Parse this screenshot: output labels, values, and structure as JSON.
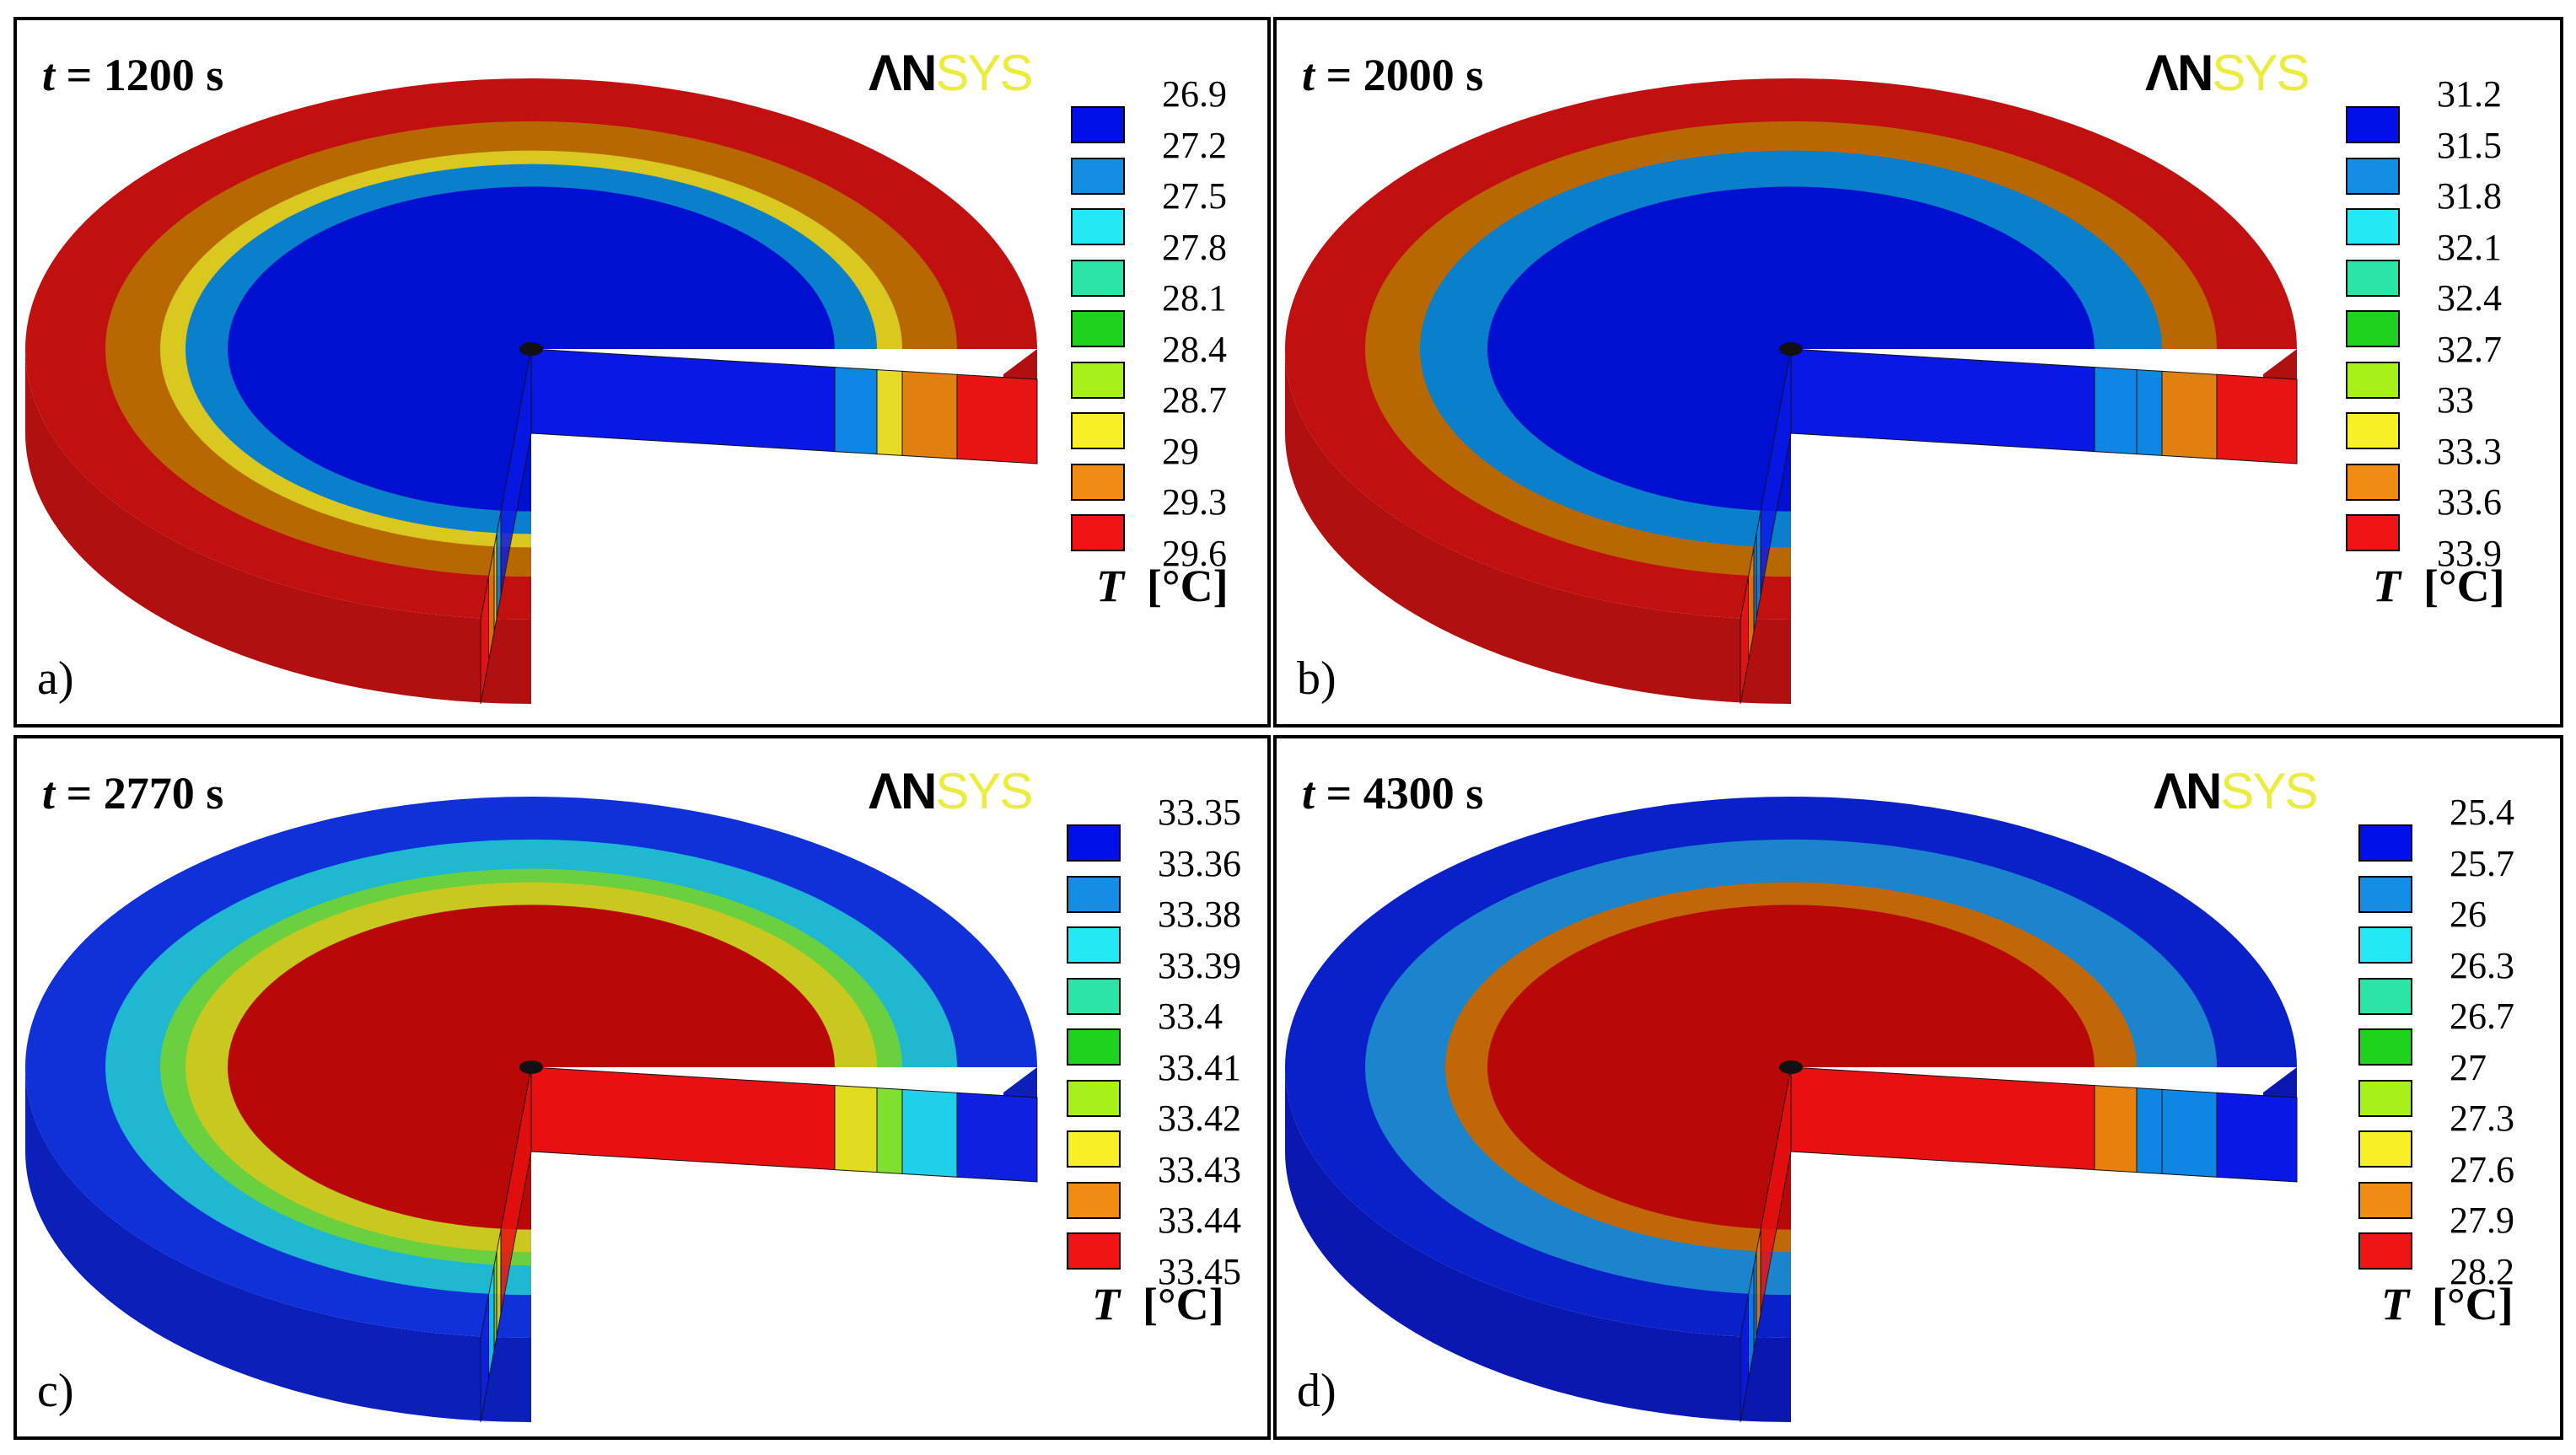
{
  "figure": {
    "logo": {
      "an": "ΛN",
      "sys": "SYS"
    },
    "unit_symbol": "T",
    "unit": "[°C]",
    "palette": [
      "#0010e8",
      "#138ee4",
      "#24e8f4",
      "#2ae4a8",
      "#1fd21e",
      "#a8f01a",
      "#f8f024",
      "#f08c12",
      "#f01414"
    ],
    "panels": [
      {
        "id": "a",
        "label": "a)",
        "title_var": "t",
        "title_rest": " = 1200 s",
        "ticks": [
          "26.9",
          "27.2",
          "27.5",
          "27.8",
          "28.1",
          "28.4",
          "28.7",
          "29",
          "29.3",
          "29.6"
        ],
        "rings": {
          "inner": "#0010d0",
          "r2": "#0a80cc",
          "r3": "#d8c820",
          "r4": "#b86800",
          "outer": "#c01010"
        },
        "side": {
          "inner": "#0a18e6",
          "r2": "#0e86e4",
          "r3": "#e6dc28",
          "r4": "#e0800e",
          "outer": "#e81414",
          "back": "#b01010"
        }
      },
      {
        "id": "b",
        "label": "b)",
        "title_var": "t",
        "title_rest": " = 2000 s",
        "ticks": [
          "31.2",
          "31.5",
          "31.8",
          "32.1",
          "32.4",
          "32.7",
          "33",
          "33.3",
          "33.6",
          "33.9"
        ],
        "rings": {
          "inner": "#0010d0",
          "r2": "#0a80cc",
          "r3": "#0a80cc",
          "r4": "#b86800",
          "outer": "#c01010"
        },
        "side": {
          "inner": "#0a18e6",
          "r2": "#0e86e4",
          "r3": "#0e86e4",
          "r4": "#e0800e",
          "outer": "#e81414",
          "back": "#b01010"
        }
      },
      {
        "id": "c",
        "label": "c)",
        "title_var": "t",
        "title_rest": " = 2770 s",
        "ticks": [
          "33.35",
          "33.36",
          "33.38",
          "33.39",
          "33.4",
          "33.41",
          "33.42",
          "33.43",
          "33.44",
          "33.45"
        ],
        "rings": {
          "inner": "#b80808",
          "r2": "#c8c820",
          "r3": "#6ad040",
          "r4": "#20b8d0",
          "outer": "#1030d8"
        },
        "side": {
          "inner": "#e81010",
          "r2": "#e0dc20",
          "r3": "#80e030",
          "r4": "#20d0e8",
          "outer": "#1020e0",
          "back": "#0a20b8"
        }
      },
      {
        "id": "d",
        "label": "d)",
        "title_var": "t",
        "title_rest": " = 4300 s",
        "ticks": [
          "25.4",
          "25.7",
          "26",
          "26.3",
          "26.7",
          "27",
          "27.3",
          "27.6",
          "27.9",
          "28.2"
        ],
        "rings": {
          "inner": "#b80808",
          "r2": "#c06808",
          "r3": "#1c84cc",
          "r4": "#1c84cc",
          "outer": "#0a20c8"
        },
        "side": {
          "inner": "#e81010",
          "r2": "#e8800e",
          "r3": "#0e86e4",
          "r4": "#0e86e4",
          "outer": "#0a18e6",
          "back": "#0a18b0"
        }
      }
    ]
  }
}
